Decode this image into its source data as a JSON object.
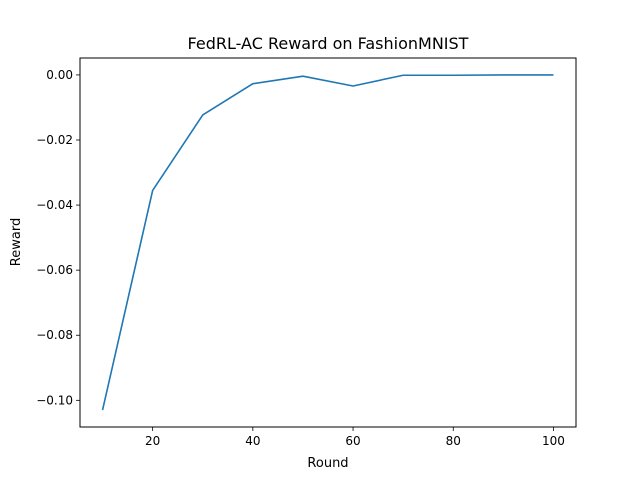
{
  "chart_data": {
    "type": "line",
    "title": "FedRL-AC Reward on FashionMNIST",
    "xlabel": "Round",
    "ylabel": "Reward",
    "x": [
      10,
      20,
      30,
      40,
      50,
      60,
      70,
      80,
      90,
      100
    ],
    "series": [
      {
        "values": [
          -0.103,
          -0.0355,
          -0.0123,
          -0.0027,
          -0.0004,
          -0.0034,
          -0.0001,
          -0.0001,
          0.0,
          0.0
        ]
      }
    ],
    "xlim": [
      5.5,
      104.5
    ],
    "ylim": [
      -0.1082,
      0.0052
    ],
    "xticks": [
      20,
      40,
      60,
      80,
      100
    ],
    "xtick_labels": [
      "20",
      "40",
      "60",
      "80",
      "100"
    ],
    "yticks": [
      0.0,
      -0.02,
      -0.04,
      -0.06,
      -0.08,
      -0.1
    ],
    "ytick_labels": [
      "0.00",
      "−0.02",
      "−0.04",
      "−0.06",
      "−0.08",
      "−0.10"
    ],
    "grid": false,
    "line_color": "#1f77b4"
  }
}
